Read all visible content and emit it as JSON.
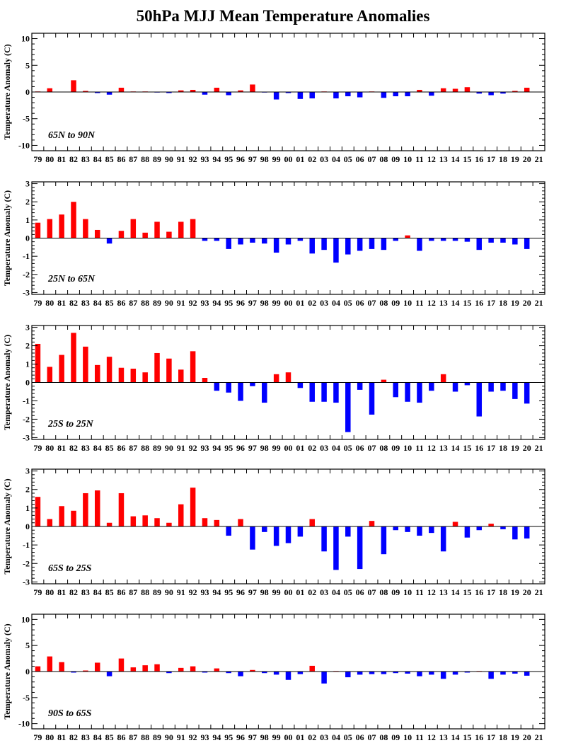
{
  "title": "50hPa MJJ Mean Temperature Anomalies",
  "colors": {
    "positive": "#ff0000",
    "negative": "#0000ff",
    "axis": "#000000"
  },
  "chart_data": [
    {
      "type": "bar",
      "annotation": "65N to 90N",
      "ylabel": "Temperature Anomaly (C)",
      "ylim": [
        -11,
        11
      ],
      "yticks": [
        -10,
        -5,
        0,
        5,
        10
      ],
      "ytick_labels": [
        "-10",
        "-5",
        "0",
        "5",
        "10"
      ],
      "categories": [
        "79",
        "80",
        "81",
        "82",
        "83",
        "84",
        "85",
        "86",
        "87",
        "88",
        "89",
        "90",
        "91",
        "92",
        "93",
        "94",
        "95",
        "96",
        "97",
        "98",
        "99",
        "00",
        "01",
        "02",
        "03",
        "04",
        "05",
        "06",
        "07",
        "08",
        "09",
        "10",
        "11",
        "12",
        "13",
        "14",
        "15",
        "16",
        "17",
        "18",
        "19",
        "20",
        "21"
      ],
      "values": [
        0.1,
        0.7,
        0.0,
        2.2,
        0.2,
        -0.2,
        -0.5,
        0.8,
        0.1,
        0.1,
        -0.1,
        -0.2,
        0.3,
        0.4,
        -0.5,
        0.8,
        -0.6,
        0.3,
        1.4,
        -0.1,
        -1.4,
        -0.2,
        -1.3,
        -1.2,
        0.1,
        -1.2,
        -0.8,
        -1.0,
        0.1,
        -1.1,
        -0.8,
        -0.8,
        0.4,
        -0.7,
        0.7,
        0.6,
        0.9,
        -0.3,
        -0.6,
        -0.3,
        0.2,
        0.8,
        0.0
      ]
    },
    {
      "type": "bar",
      "annotation": "25N to 65N",
      "ylabel": "Temperature Anomaly (C)",
      "ylim": [
        -3.1,
        3.1
      ],
      "yticks": [
        -3,
        -2,
        -1,
        0,
        1,
        2,
        3
      ],
      "ytick_labels": [
        "-3",
        "-2",
        "-1",
        "0",
        "1",
        "2",
        "3"
      ],
      "categories": [
        "79",
        "80",
        "81",
        "82",
        "83",
        "84",
        "85",
        "86",
        "87",
        "88",
        "89",
        "90",
        "91",
        "92",
        "93",
        "94",
        "95",
        "96",
        "97",
        "98",
        "99",
        "00",
        "01",
        "02",
        "03",
        "04",
        "05",
        "06",
        "07",
        "08",
        "09",
        "10",
        "11",
        "12",
        "13",
        "14",
        "15",
        "16",
        "17",
        "18",
        "19",
        "20",
        "21"
      ],
      "values": [
        0.85,
        1.05,
        1.3,
        2.0,
        1.05,
        0.45,
        -0.3,
        0.4,
        1.05,
        0.3,
        0.9,
        0.35,
        0.9,
        1.05,
        -0.15,
        -0.15,
        -0.6,
        -0.35,
        -0.25,
        -0.3,
        -0.8,
        -0.35,
        -0.15,
        -0.85,
        -0.65,
        -1.35,
        -0.9,
        -0.7,
        -0.6,
        -0.65,
        -0.15,
        0.15,
        -0.7,
        -0.15,
        -0.15,
        -0.15,
        -0.2,
        -0.65,
        -0.25,
        -0.25,
        -0.35,
        -0.6,
        0.0
      ]
    },
    {
      "type": "bar",
      "annotation": "25S to 25N",
      "ylabel": "Temperature Anomaly (C)",
      "ylim": [
        -3.1,
        3.1
      ],
      "yticks": [
        -3,
        -2,
        -1,
        0,
        1,
        2,
        3
      ],
      "ytick_labels": [
        "-3",
        "-2",
        "-1",
        "0",
        "1",
        "2",
        "3"
      ],
      "categories": [
        "79",
        "80",
        "81",
        "82",
        "83",
        "84",
        "85",
        "86",
        "87",
        "88",
        "89",
        "90",
        "91",
        "92",
        "93",
        "94",
        "95",
        "96",
        "97",
        "98",
        "99",
        "00",
        "01",
        "02",
        "03",
        "04",
        "05",
        "06",
        "07",
        "08",
        "09",
        "10",
        "11",
        "12",
        "13",
        "14",
        "15",
        "16",
        "17",
        "18",
        "19",
        "20",
        "21"
      ],
      "values": [
        2.1,
        0.85,
        1.5,
        2.7,
        1.95,
        0.95,
        1.4,
        0.8,
        0.75,
        0.55,
        1.6,
        1.3,
        0.7,
        1.7,
        0.25,
        -0.45,
        -0.55,
        -1.0,
        -0.2,
        -1.1,
        0.45,
        0.55,
        -0.3,
        -1.05,
        -1.05,
        -1.1,
        -2.7,
        -0.4,
        -1.75,
        0.15,
        -0.8,
        -1.05,
        -1.1,
        -0.45,
        0.45,
        -0.5,
        -0.15,
        -1.85,
        -0.5,
        -0.45,
        -0.9,
        -1.15,
        0.0
      ]
    },
    {
      "type": "bar",
      "annotation": "65S to 25S",
      "ylabel": "Temperature Anomaly (C)",
      "ylim": [
        -3.1,
        3.1
      ],
      "yticks": [
        -3,
        -2,
        -1,
        0,
        1,
        2,
        3
      ],
      "ytick_labels": [
        "-3",
        "-2",
        "-1",
        "0",
        "1",
        "2",
        "3"
      ],
      "categories": [
        "79",
        "80",
        "81",
        "82",
        "83",
        "84",
        "85",
        "86",
        "87",
        "88",
        "89",
        "90",
        "91",
        "92",
        "93",
        "94",
        "95",
        "96",
        "97",
        "98",
        "99",
        "00",
        "01",
        "02",
        "03",
        "04",
        "05",
        "06",
        "07",
        "08",
        "09",
        "10",
        "11",
        "12",
        "13",
        "14",
        "15",
        "16",
        "17",
        "18",
        "19",
        "20",
        "21"
      ],
      "values": [
        1.6,
        0.4,
        1.1,
        0.85,
        1.8,
        1.95,
        0.2,
        1.8,
        0.55,
        0.6,
        0.45,
        0.2,
        1.2,
        2.1,
        0.45,
        0.35,
        -0.5,
        0.4,
        -1.25,
        -0.3,
        -1.05,
        -0.9,
        -0.55,
        0.4,
        -1.35,
        -2.35,
        -0.55,
        -2.3,
        0.3,
        -1.5,
        -0.2,
        -0.3,
        -0.5,
        -0.35,
        -1.35,
        0.25,
        -0.6,
        -0.2,
        0.15,
        -0.15,
        -0.7,
        -0.65,
        0.0
      ]
    },
    {
      "type": "bar",
      "annotation": "90S to 65S",
      "ylabel": "Temperature Anomaly (C)",
      "ylim": [
        -11,
        11
      ],
      "yticks": [
        -10,
        -5,
        0,
        5,
        10
      ],
      "ytick_labels": [
        "-10",
        "-5",
        "0",
        "5",
        "10"
      ],
      "categories": [
        "79",
        "80",
        "81",
        "82",
        "83",
        "84",
        "85",
        "86",
        "87",
        "88",
        "89",
        "90",
        "91",
        "92",
        "93",
        "94",
        "95",
        "96",
        "97",
        "98",
        "99",
        "00",
        "01",
        "02",
        "03",
        "04",
        "05",
        "06",
        "07",
        "08",
        "09",
        "10",
        "11",
        "12",
        "13",
        "14",
        "15",
        "16",
        "17",
        "18",
        "19",
        "20",
        "21"
      ],
      "values": [
        1.0,
        2.9,
        1.8,
        -0.2,
        0.2,
        1.7,
        -0.9,
        2.5,
        0.8,
        1.2,
        1.4,
        -0.3,
        0.7,
        1.0,
        -0.2,
        0.6,
        -0.3,
        -0.9,
        0.3,
        -0.3,
        -0.6,
        -1.6,
        -0.5,
        1.1,
        -2.3,
        0.1,
        -1.1,
        -0.6,
        -0.5,
        -0.5,
        -0.3,
        -0.4,
        -0.9,
        -0.6,
        -1.4,
        -0.6,
        -0.2,
        0.1,
        -1.4,
        -0.6,
        -0.4,
        -0.8,
        0.0
      ]
    }
  ]
}
